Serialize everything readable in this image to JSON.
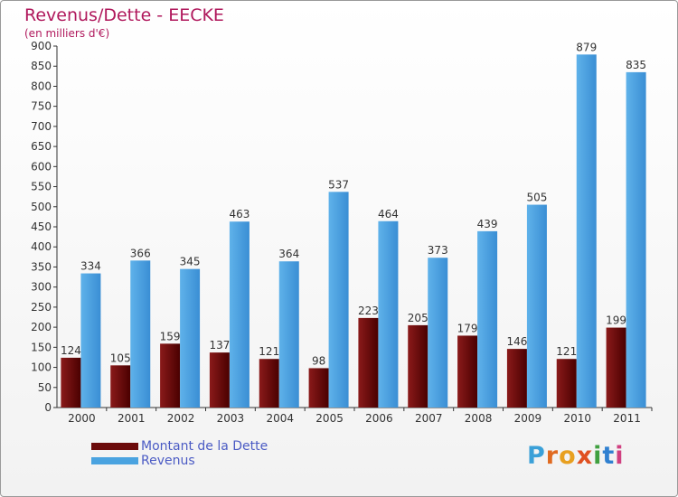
{
  "header": {
    "title": "Revenus/Dette - EECKE",
    "subtitle": "(en milliers d'€)"
  },
  "colors": {
    "title": "#b0185c",
    "debt_dark": "#5c0000",
    "debt_light": "#9a3030",
    "revenue_dark": "#2a78c0",
    "revenue_light": "#5aaee8",
    "legend_text": "#4b5bc4"
  },
  "legend": {
    "items": [
      {
        "label": "Montant de la Dette",
        "color": "#6b0a0a"
      },
      {
        "label": "Revenus",
        "color": "#4aa3e0"
      }
    ]
  },
  "logo": {
    "letters": [
      "P",
      "r",
      "o",
      "x",
      "i",
      "t",
      "i"
    ],
    "colors": [
      "#3aa0d8",
      "#e06a20",
      "#e8a020",
      "#e05020",
      "#40a040",
      "#3080d0",
      "#d04080"
    ]
  },
  "chart_data": {
    "type": "bar",
    "title": "Revenus/Dette - EECKE",
    "subtitle": "(en milliers d'€)",
    "categories": [
      "2000",
      "2001",
      "2002",
      "2003",
      "2004",
      "2005",
      "2006",
      "2007",
      "2008",
      "2009",
      "2010",
      "2011"
    ],
    "series": [
      {
        "name": "Montant de la Dette",
        "values": [
          124,
          105,
          159,
          137,
          121,
          98,
          223,
          205,
          179,
          146,
          121,
          199
        ]
      },
      {
        "name": "Revenus",
        "values": [
          334,
          366,
          345,
          463,
          364,
          537,
          464,
          373,
          439,
          505,
          879,
          835
        ]
      }
    ],
    "ylim": [
      0,
      900
    ],
    "yticks": [
      0,
      50,
      100,
      150,
      200,
      250,
      300,
      350,
      400,
      450,
      500,
      550,
      600,
      650,
      700,
      750,
      800,
      850,
      900
    ],
    "grid": false,
    "legend_position": "bottom-left"
  }
}
